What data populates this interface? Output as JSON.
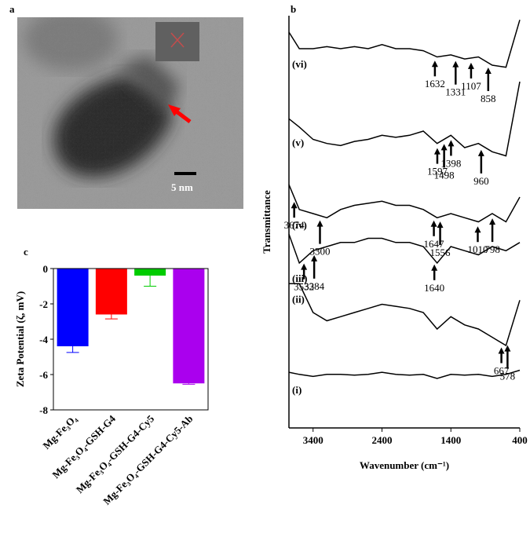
{
  "chart_data": [
    {
      "type": "image",
      "label": "a",
      "scale_bar": "5 nm"
    },
    {
      "type": "line",
      "label": "b",
      "x_label": "Wavenumber (cm⁻¹)",
      "y_label": "Transmittance",
      "xlim": [
        3750,
        400
      ],
      "xticks": [
        3400,
        2400,
        1400,
        400
      ],
      "ylim": [
        0,
        10
      ],
      "x": [
        3750,
        3600,
        3400,
        3200,
        3000,
        2800,
        2600,
        2400,
        2200,
        2000,
        1800,
        1600,
        1400,
        1200,
        1000,
        800,
        600,
        400
      ],
      "series": [
        {
          "name": "(vi)",
          "color": "#000",
          "values": [
            9.6,
            9.2,
            9.2,
            9.25,
            9.2,
            9.25,
            9.2,
            9.3,
            9.2,
            9.2,
            9.15,
            9.0,
            9.05,
            8.95,
            9.0,
            8.8,
            8.75,
            9.9
          ],
          "peaks": [
            1632,
            1331,
            1107,
            858
          ]
        },
        {
          "name": "(v)",
          "color": "#000",
          "values": [
            7.5,
            7.3,
            7.0,
            6.9,
            6.85,
            6.95,
            7.0,
            7.1,
            7.05,
            7.1,
            7.2,
            6.9,
            7.1,
            6.8,
            6.9,
            6.7,
            6.6,
            8.4
          ],
          "peaks": [
            1597,
            1498,
            1398,
            960
          ]
        },
        {
          "name": "(iv)",
          "color": "#000",
          "values": [
            5.9,
            5.3,
            5.2,
            5.1,
            5.3,
            5.4,
            5.45,
            5.5,
            5.4,
            5.4,
            5.3,
            5.1,
            5.2,
            5.1,
            5.0,
            5.2,
            5.0,
            5.6
          ],
          "peaks": [
            3674,
            3300,
            1647,
            1556,
            1010,
            798
          ]
        },
        {
          "name": "(iii)",
          "color": "#000",
          "values": [
            4.7,
            4.0,
            4.3,
            4.4,
            4.5,
            4.5,
            4.6,
            4.6,
            4.5,
            4.5,
            4.4,
            4.0,
            4.4,
            4.3,
            4.2,
            4.4,
            4.3,
            4.5
          ],
          "peaks": [
            3532,
            3384,
            1640
          ]
        },
        {
          "name": "(ii)",
          "color": "#000",
          "values": [
            3.5,
            3.5,
            2.8,
            2.6,
            2.7,
            2.8,
            2.9,
            3.0,
            2.95,
            2.9,
            2.8,
            2.4,
            2.7,
            2.5,
            2.4,
            2.2,
            2.0,
            3.1
          ],
          "peaks": [
            667,
            578
          ]
        },
        {
          "name": "(i)",
          "color": "#000",
          "values": [
            1.35,
            1.3,
            1.25,
            1.3,
            1.3,
            1.28,
            1.3,
            1.35,
            1.3,
            1.28,
            1.3,
            1.2,
            1.3,
            1.28,
            1.3,
            1.25,
            1.3,
            1.4
          ],
          "peaks": []
        }
      ]
    },
    {
      "type": "bar",
      "label": "c",
      "y_label": "Zeta Potential (ζ, mV)",
      "categories": [
        "Mg-Fe₃O₄",
        "Mg-Fe₃O₄-GSH-G4",
        "Mg-Fe₃O₄-GSH-G4-Cy5",
        "Mg-Fe₃O₄-GSH-G4-Cy5-Ab"
      ],
      "values": [
        -4.4,
        -2.6,
        -0.4,
        -6.5
      ],
      "errors": [
        0.35,
        0.25,
        0.6,
        0.05
      ],
      "colors": [
        "#0000ff",
        "#ff0000",
        "#00cc00",
        "#aa00ee"
      ],
      "ylim": [
        -8,
        0
      ],
      "yticks": [
        0,
        -2,
        -4,
        -6,
        -8
      ]
    }
  ]
}
